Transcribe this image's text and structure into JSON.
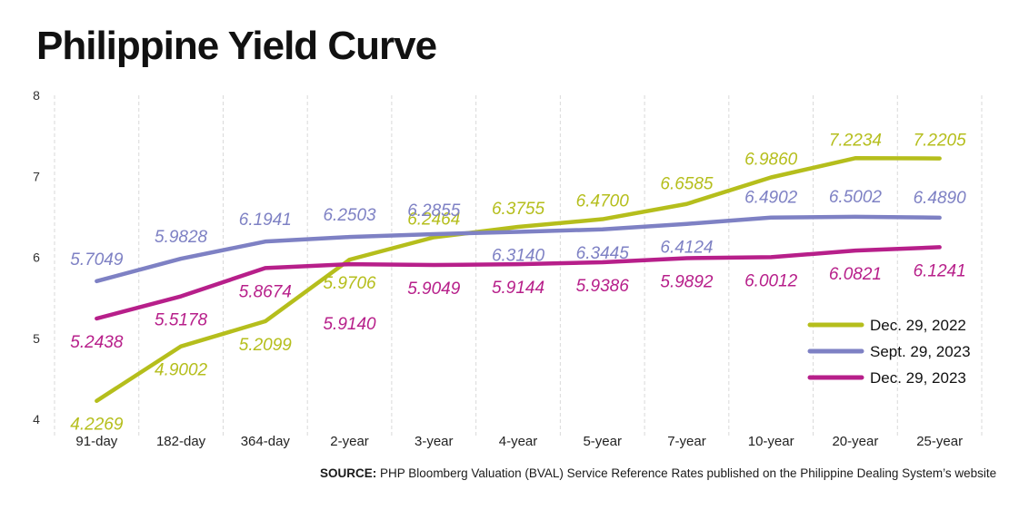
{
  "title": "Philippine Yield Curve",
  "source_label": "SOURCE:",
  "source_text": "PHP Bloomberg Valuation (BVAL) Service Reference Rates published on the Philippine Dealing System’s website",
  "chart_data": {
    "type": "line",
    "title": "Philippine Yield Curve",
    "xlabel": "",
    "ylabel": "",
    "ylim": [
      4,
      8
    ],
    "yticks": [
      4,
      5,
      6,
      7,
      8
    ],
    "grid": "vertical",
    "legend": "right",
    "categories": [
      "91-day",
      "182-day",
      "364-day",
      "2-year",
      "3-year",
      "4-year",
      "5-year",
      "7-year",
      "10-year",
      "20-year",
      "25-year"
    ],
    "series": [
      {
        "name": "Dec. 29, 2022",
        "color": "#b5be1c",
        "values": [
          4.2269,
          4.9002,
          5.2099,
          5.9706,
          6.2464,
          6.3755,
          6.47,
          6.6585,
          6.986,
          7.2234,
          7.2205
        ],
        "labels": [
          "4.2269",
          "4.9002",
          "5.2099",
          "5.9706",
          "6.2464",
          "6.3755",
          "6.4700",
          "6.6585",
          "6.9860",
          "7.2234",
          "7.2205"
        ]
      },
      {
        "name": "Sept. 29, 2023",
        "color": "#7e81c4",
        "values": [
          5.7049,
          5.9828,
          6.1941,
          6.2503,
          6.2855,
          6.314,
          6.3445,
          6.4124,
          6.4902,
          6.5002,
          6.489
        ],
        "labels": [
          "5.7049",
          "5.9828",
          "6.1941",
          "6.2503",
          "6.2855",
          "6.3140",
          "6.3445",
          "6.4124",
          "6.4902",
          "6.5002",
          "6.4890"
        ]
      },
      {
        "name": "Dec. 29, 2023",
        "color": "#b71f8a",
        "values": [
          5.2438,
          5.5178,
          5.8674,
          5.914,
          5.9049,
          5.9144,
          5.9386,
          5.9892,
          6.0012,
          6.0821,
          6.1241
        ],
        "labels": [
          "5.2438",
          "5.5178",
          "5.8674",
          "5.9140",
          "5.9049",
          "5.9144",
          "5.9386",
          "5.9892",
          "6.0012",
          "6.0821",
          "6.1241"
        ]
      }
    ]
  }
}
